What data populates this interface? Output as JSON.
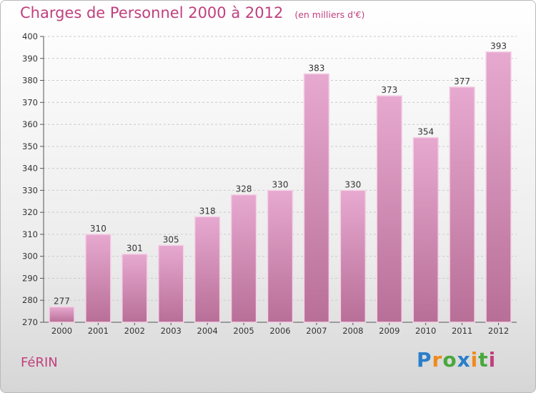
{
  "header": {
    "title": "Charges de Personnel 2000 à 2012",
    "subtitle": "(en milliers d'€)"
  },
  "footer": {
    "town": "FéRIN",
    "logo": "Proxiti"
  },
  "colors": {
    "accent": "#c0407e",
    "bar_top": "#e7a9d0",
    "bar_bottom": "#b86f97",
    "bar_edge": "#f4d3e6"
  },
  "chart_data": {
    "type": "bar",
    "title": "Charges de Personnel 2000 à 2012",
    "subtitle": "(en milliers d'€)",
    "categories": [
      "2000",
      "2001",
      "2002",
      "2003",
      "2004",
      "2005",
      "2006",
      "2007",
      "2008",
      "2009",
      "2010",
      "2011",
      "2012"
    ],
    "values": [
      277,
      310,
      301,
      305,
      318,
      328,
      330,
      383,
      330,
      373,
      354,
      377,
      393
    ],
    "data_labels": [
      "277",
      "310",
      "301",
      "305",
      "318",
      "328",
      "330",
      "383",
      "330",
      "373",
      "354",
      "377",
      "393"
    ],
    "yticks": [
      270,
      280,
      290,
      300,
      310,
      320,
      330,
      340,
      350,
      360,
      370,
      380,
      390,
      400
    ],
    "ylim": [
      270,
      400
    ],
    "xlabel": "",
    "ylabel": "",
    "grid": true,
    "legend": "none"
  }
}
